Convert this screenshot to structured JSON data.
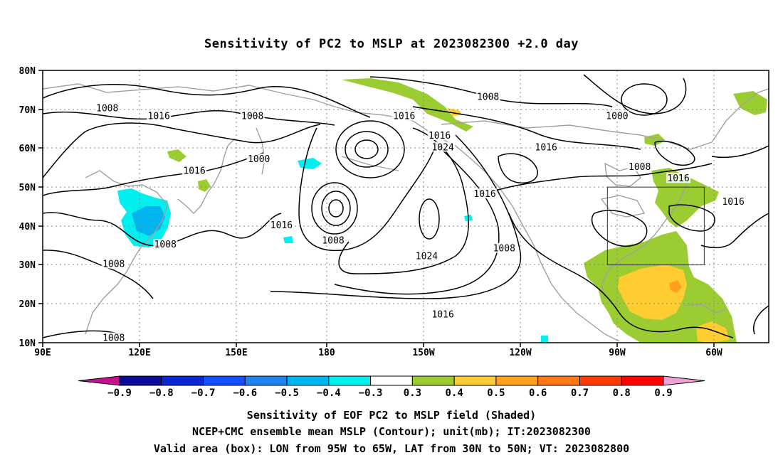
{
  "title": "Sensitivity of PC2 to MSLP at 2023082300 +2.0 day",
  "lat_ticks": [
    "80N",
    "70N",
    "60N",
    "50N",
    "40N",
    "30N",
    "20N",
    "10N"
  ],
  "lon_ticks": [
    "90E",
    "120E",
    "150E",
    "180",
    "150W",
    "120W",
    "90W",
    "60W"
  ],
  "contour_labels": [
    {
      "text": "1008",
      "lon": 110,
      "lat": 70
    },
    {
      "text": "1016",
      "lon": 126,
      "lat": 68
    },
    {
      "text": "1016",
      "lon": 202,
      "lat": 68
    },
    {
      "text": "1008",
      "lon": 155,
      "lat": 68
    },
    {
      "text": "1008",
      "lon": 228,
      "lat": 73
    },
    {
      "text": "1000",
      "lon": 268,
      "lat": 68
    },
    {
      "text": "1016",
      "lon": 213,
      "lat": 63
    },
    {
      "text": "1024",
      "lon": 214,
      "lat": 60
    },
    {
      "text": "1000",
      "lon": 157,
      "lat": 57
    },
    {
      "text": "1016",
      "lon": 137,
      "lat": 54
    },
    {
      "text": "1016",
      "lon": 246,
      "lat": 60
    },
    {
      "text": "1008",
      "lon": 275,
      "lat": 55
    },
    {
      "text": "1016",
      "lon": 287,
      "lat": 52
    },
    {
      "text": "1016",
      "lon": 227,
      "lat": 48
    },
    {
      "text": "1016",
      "lon": 304,
      "lat": 46
    },
    {
      "text": "1016",
      "lon": 164,
      "lat": 40
    },
    {
      "text": "1008",
      "lon": 180,
      "lat": 36
    },
    {
      "text": "1008",
      "lon": 128,
      "lat": 35
    },
    {
      "text": "1008",
      "lon": 233,
      "lat": 34
    },
    {
      "text": "1024",
      "lon": 209,
      "lat": 32
    },
    {
      "text": "1008",
      "lon": 112,
      "lat": 30
    },
    {
      "text": "1016",
      "lon": 214,
      "lat": 17
    },
    {
      "text": "1008",
      "lon": 112,
      "lat": 11
    }
  ],
  "colorbar": {
    "labels": [
      "−0.9",
      "−0.8",
      "−0.7",
      "−0.6",
      "−0.5",
      "−0.4",
      "−0.3",
      "0.3",
      "0.4",
      "0.5",
      "0.6",
      "0.7",
      "0.8",
      "0.9"
    ],
    "colors": [
      "#c8108c",
      "#0a0a9b",
      "#0a28d2",
      "#1450ff",
      "#1e82f0",
      "#00b4f0",
      "#00f0f0",
      "#ffffff",
      "#9bcd32",
      "#ffcd32",
      "#ffa01e",
      "#ff7814",
      "#ff3c00",
      "#ff0000",
      "#f0a0d2"
    ]
  },
  "caption_lines": [
    "Sensitivity of EOF PC2 to MSLP field (Shaded)",
    "NCEP+CMC ensemble mean MSLP (Contour); unit(mb); IT:2023082300",
    "Valid area (box): LON from 95W to 65W, LAT from 30N to 50N; VT: 2023082800"
  ],
  "valid_box": {
    "lon_min": -95,
    "lon_max": -65,
    "lat_min": 30,
    "lat_max": 50
  }
}
